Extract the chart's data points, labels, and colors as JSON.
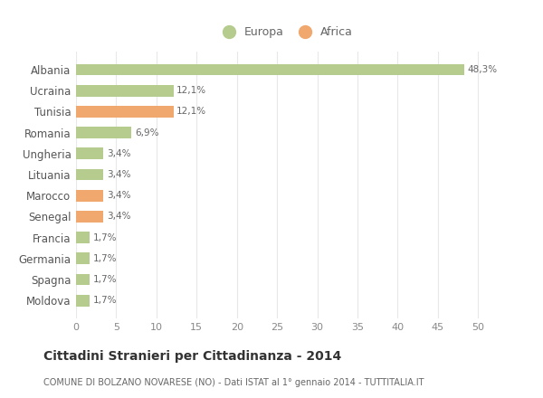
{
  "categories": [
    "Albania",
    "Ucraina",
    "Tunisia",
    "Romania",
    "Ungheria",
    "Lituania",
    "Marocco",
    "Senegal",
    "Francia",
    "Germania",
    "Spagna",
    "Moldova"
  ],
  "values": [
    48.3,
    12.1,
    12.1,
    6.9,
    3.4,
    3.4,
    3.4,
    3.4,
    1.7,
    1.7,
    1.7,
    1.7
  ],
  "labels": [
    "48,3%",
    "12,1%",
    "12,1%",
    "6,9%",
    "3,4%",
    "3,4%",
    "3,4%",
    "3,4%",
    "1,7%",
    "1,7%",
    "1,7%",
    "1,7%"
  ],
  "continents": [
    "Europa",
    "Europa",
    "Africa",
    "Europa",
    "Europa",
    "Europa",
    "Africa",
    "Africa",
    "Europa",
    "Europa",
    "Europa",
    "Europa"
  ],
  "color_europa": "#b5cc8e",
  "color_africa": "#f0a86e",
  "title": "Cittadini Stranieri per Cittadinanza - 2014",
  "subtitle": "COMUNE DI BOLZANO NOVARESE (NO) - Dati ISTAT al 1° gennaio 2014 - TUTTITALIA.IT",
  "xlim": [
    0,
    52
  ],
  "xticks": [
    0,
    5,
    10,
    15,
    20,
    25,
    30,
    35,
    40,
    45,
    50
  ],
  "background_color": "#ffffff",
  "grid_color": "#e8e8e8",
  "legend_europa": "Europa",
  "legend_africa": "Africa"
}
